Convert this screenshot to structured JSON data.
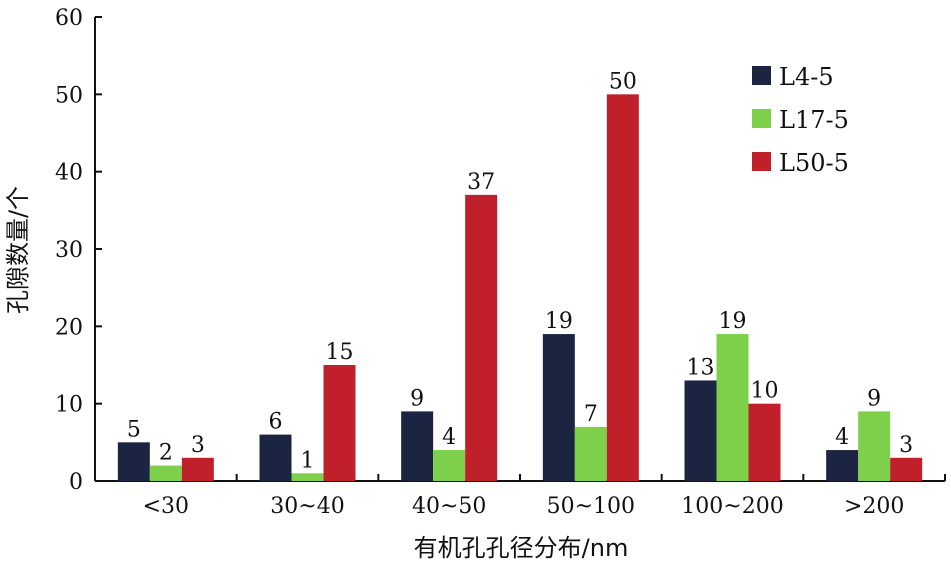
{
  "chart_data": {
    "type": "bar",
    "title": "",
    "xlabel": "有机孔孔径分布/nm",
    "ylabel": "孔隙数量/个",
    "ylim": [
      0,
      60
    ],
    "yticks": [
      "0",
      "10",
      "20",
      "30",
      "40",
      "50",
      "60"
    ],
    "categories": [
      "<30",
      "30~40",
      "40~50",
      "50~100",
      "100~200",
      ">200"
    ],
    "series": [
      {
        "name": "L4-5",
        "color": "#1b2440",
        "values": [
          5,
          6,
          9,
          19,
          13,
          4
        ]
      },
      {
        "name": "L17-5",
        "color": "#7ed04a",
        "values": [
          2,
          1,
          4,
          7,
          19,
          9
        ]
      },
      {
        "name": "L50-5",
        "color": "#c0202a",
        "values": [
          3,
          15,
          37,
          50,
          10,
          3
        ]
      }
    ],
    "grid": false,
    "legend_position": "top-right"
  }
}
